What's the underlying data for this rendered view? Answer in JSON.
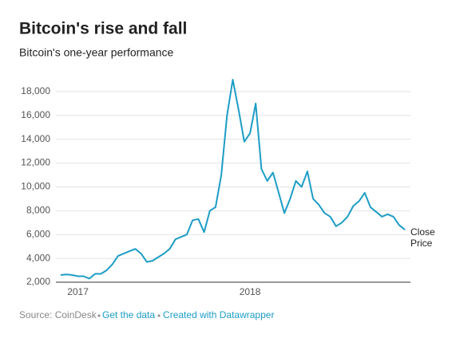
{
  "chart_data": {
    "type": "line",
    "title": "Bitcoin's rise and fall",
    "subtitle": "Bitcoin's one-year performance",
    "categories": [
      null,
      null,
      null,
      "2017",
      null,
      null,
      null,
      null,
      null,
      null,
      null,
      null,
      null,
      null,
      null,
      null,
      null,
      null,
      null,
      null,
      null,
      null,
      null,
      null,
      null,
      null,
      null,
      null,
      null,
      null,
      null,
      null,
      null,
      "2018",
      null,
      null,
      null,
      null,
      null,
      null,
      null,
      null,
      null,
      null,
      null,
      null,
      null,
      null,
      null,
      null,
      null,
      null,
      null,
      null,
      null,
      null,
      null,
      null,
      null,
      null,
      null
    ],
    "series": [
      {
        "name": "Close Price",
        "color": "#1d9dc6",
        "values": [
          2600,
          2650,
          2600,
          2500,
          2500,
          2300,
          2700,
          2700,
          3000,
          3500,
          4200,
          4400,
          4600,
          4800,
          4400,
          3700,
          3800,
          4100,
          4400,
          4800,
          5600,
          5800,
          6000,
          7200,
          7300,
          6200,
          8000,
          8300,
          11000,
          16000,
          19000,
          16500,
          13800,
          14500,
          17000,
          11500,
          10500,
          11200,
          9500,
          7800,
          9000,
          10500,
          10000,
          11300,
          9000,
          8500,
          7800,
          7500,
          6700,
          7000,
          7500,
          8400,
          8800,
          9500,
          8300,
          7900,
          7500,
          7700,
          7500,
          6800,
          6400
        ]
      }
    ],
    "ylim": [
      2000,
      20000
    ],
    "yticks": [
      {
        "value": 2000,
        "label": "2,000"
      },
      {
        "value": 4000,
        "label": "4,000"
      },
      {
        "value": 6000,
        "label": "6,000"
      },
      {
        "value": 8000,
        "label": "8,000"
      },
      {
        "value": 10000,
        "label": "10,000"
      },
      {
        "value": 12000,
        "label": "12,000"
      },
      {
        "value": 14000,
        "label": "14,000"
      },
      {
        "value": 16000,
        "label": "16,000"
      },
      {
        "value": 18000,
        "label": "18,000"
      }
    ],
    "grid": true,
    "source": "Source: CoinDesk",
    "links": [
      "Get the data",
      "Created with Datawrapper"
    ]
  }
}
